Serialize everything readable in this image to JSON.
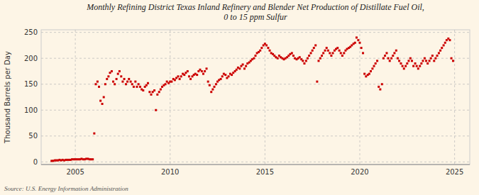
{
  "chart_data": {
    "type": "scatter",
    "title": "Monthly Refining District Texas Inland Refinery and Blender Net Production of Distillate Fuel Oil,\n0 to 15 ppm Sulfur",
    "ylabel": "Thousand Barrels per Day",
    "annotations": [
      "Source: U.S. Energy Information Administration"
    ],
    "color": "#cc0000",
    "marker": "square",
    "grid": true,
    "xlim": [
      2003.2,
      2025.8
    ],
    "ylim": [
      -5,
      255
    ],
    "xticks": [
      2005,
      2010,
      2015,
      2020,
      2025
    ],
    "yticks": [
      0,
      50,
      100,
      150,
      200,
      250
    ],
    "x": [
      2003.75,
      2003.83,
      2003.92,
      2004.0,
      2004.08,
      2004.17,
      2004.25,
      2004.33,
      2004.42,
      2004.5,
      2004.58,
      2004.67,
      2004.75,
      2004.83,
      2004.92,
      2005.0,
      2005.08,
      2005.17,
      2005.25,
      2005.33,
      2005.42,
      2005.5,
      2005.58,
      2005.67,
      2005.75,
      2005.83,
      2005.92,
      2006.0,
      2006.08,
      2006.17,
      2006.25,
      2006.33,
      2006.42,
      2006.5,
      2006.58,
      2006.67,
      2006.75,
      2006.83,
      2006.92,
      2007.0,
      2007.08,
      2007.17,
      2007.25,
      2007.33,
      2007.42,
      2007.5,
      2007.58,
      2007.67,
      2007.75,
      2007.83,
      2007.92,
      2008.0,
      2008.08,
      2008.17,
      2008.25,
      2008.33,
      2008.42,
      2008.5,
      2008.58,
      2008.67,
      2008.75,
      2008.83,
      2008.92,
      2009.0,
      2009.08,
      2009.17,
      2009.25,
      2009.33,
      2009.42,
      2009.5,
      2009.58,
      2009.67,
      2009.75,
      2009.83,
      2009.92,
      2010.0,
      2010.08,
      2010.17,
      2010.25,
      2010.33,
      2010.42,
      2010.5,
      2010.58,
      2010.67,
      2010.75,
      2010.83,
      2010.92,
      2011.0,
      2011.08,
      2011.17,
      2011.25,
      2011.33,
      2011.42,
      2011.5,
      2011.58,
      2011.67,
      2011.75,
      2011.83,
      2011.92,
      2012.0,
      2012.08,
      2012.17,
      2012.25,
      2012.33,
      2012.42,
      2012.5,
      2012.58,
      2012.67,
      2012.75,
      2012.83,
      2012.92,
      2013.0,
      2013.08,
      2013.17,
      2013.25,
      2013.33,
      2013.42,
      2013.5,
      2013.58,
      2013.67,
      2013.75,
      2013.83,
      2013.92,
      2014.0,
      2014.08,
      2014.17,
      2014.25,
      2014.33,
      2014.42,
      2014.5,
      2014.58,
      2014.67,
      2014.75,
      2014.83,
      2014.92,
      2015.0,
      2015.08,
      2015.17,
      2015.25,
      2015.33,
      2015.42,
      2015.5,
      2015.58,
      2015.67,
      2015.75,
      2015.83,
      2015.92,
      2016.0,
      2016.08,
      2016.17,
      2016.25,
      2016.33,
      2016.42,
      2016.5,
      2016.58,
      2016.67,
      2016.75,
      2016.83,
      2016.92,
      2017.0,
      2017.08,
      2017.17,
      2017.25,
      2017.33,
      2017.42,
      2017.5,
      2017.58,
      2017.67,
      2017.75,
      2017.83,
      2017.92,
      2018.0,
      2018.08,
      2018.17,
      2018.25,
      2018.33,
      2018.42,
      2018.5,
      2018.58,
      2018.67,
      2018.75,
      2018.83,
      2018.92,
      2019.0,
      2019.08,
      2019.17,
      2019.25,
      2019.33,
      2019.42,
      2019.5,
      2019.58,
      2019.67,
      2019.75,
      2019.83,
      2019.92,
      2020.0,
      2020.08,
      2020.17,
      2020.25,
      2020.33,
      2020.42,
      2020.5,
      2020.58,
      2020.67,
      2020.75,
      2020.83,
      2020.92,
      2021.0,
      2021.08,
      2021.17,
      2021.25,
      2021.33,
      2021.42,
      2021.5,
      2021.58,
      2021.67,
      2021.75,
      2021.83,
      2021.92,
      2022.0,
      2022.08,
      2022.17,
      2022.25,
      2022.33,
      2022.42,
      2022.5,
      2022.58,
      2022.67,
      2022.75,
      2022.83,
      2022.92,
      2023.0,
      2023.08,
      2023.17,
      2023.25,
      2023.33,
      2023.42,
      2023.5,
      2023.58,
      2023.67,
      2023.75,
      2023.83,
      2023.92,
      2024.0,
      2024.08,
      2024.17,
      2024.25,
      2024.33,
      2024.42,
      2024.5,
      2024.58,
      2024.67,
      2024.75,
      2024.83,
      2024.92
    ],
    "values": [
      2,
      2,
      3,
      3,
      3,
      4,
      3,
      4,
      3,
      4,
      4,
      4,
      4,
      5,
      5,
      5,
      5,
      5,
      5,
      6,
      5,
      5,
      6,
      6,
      5,
      5,
      5,
      55,
      150,
      155,
      145,
      118,
      112,
      125,
      150,
      160,
      165,
      172,
      175,
      155,
      150,
      160,
      170,
      175,
      165,
      155,
      160,
      150,
      155,
      160,
      155,
      150,
      145,
      155,
      145,
      150,
      145,
      140,
      138,
      145,
      148,
      152,
      135,
      130,
      135,
      138,
      100,
      130,
      135,
      140,
      145,
      148,
      150,
      155,
      152,
      155,
      155,
      160,
      158,
      162,
      165,
      160,
      165,
      170,
      168,
      172,
      175,
      165,
      160,
      165,
      168,
      170,
      168,
      175,
      178,
      175,
      170,
      175,
      180,
      155,
      148,
      135,
      140,
      145,
      150,
      155,
      158,
      160,
      165,
      170,
      168,
      162,
      165,
      170,
      168,
      172,
      175,
      178,
      182,
      180,
      185,
      188,
      180,
      185,
      190,
      192,
      195,
      198,
      200,
      205,
      210,
      212,
      215,
      220,
      225,
      228,
      225,
      220,
      215,
      210,
      208,
      205,
      202,
      200,
      205,
      202,
      200,
      198,
      200,
      202,
      205,
      208,
      210,
      205,
      200,
      198,
      200,
      202,
      198,
      195,
      190,
      195,
      200,
      205,
      210,
      215,
      220,
      225,
      155,
      195,
      200,
      205,
      210,
      215,
      220,
      215,
      210,
      205,
      210,
      215,
      218,
      220,
      215,
      210,
      205,
      210,
      215,
      218,
      220,
      222,
      225,
      228,
      230,
      240,
      235,
      230,
      220,
      210,
      170,
      165,
      168,
      170,
      175,
      180,
      185,
      190,
      195,
      145,
      140,
      150,
      200,
      205,
      210,
      200,
      195,
      200,
      205,
      210,
      215,
      200,
      195,
      190,
      185,
      180,
      185,
      190,
      195,
      200,
      195,
      185,
      190,
      185,
      180,
      185,
      190,
      195,
      200,
      195,
      190,
      195,
      200,
      205,
      195,
      200,
      205,
      210,
      215,
      220,
      225,
      230,
      235,
      238,
      235,
      200,
      195
    ]
  }
}
